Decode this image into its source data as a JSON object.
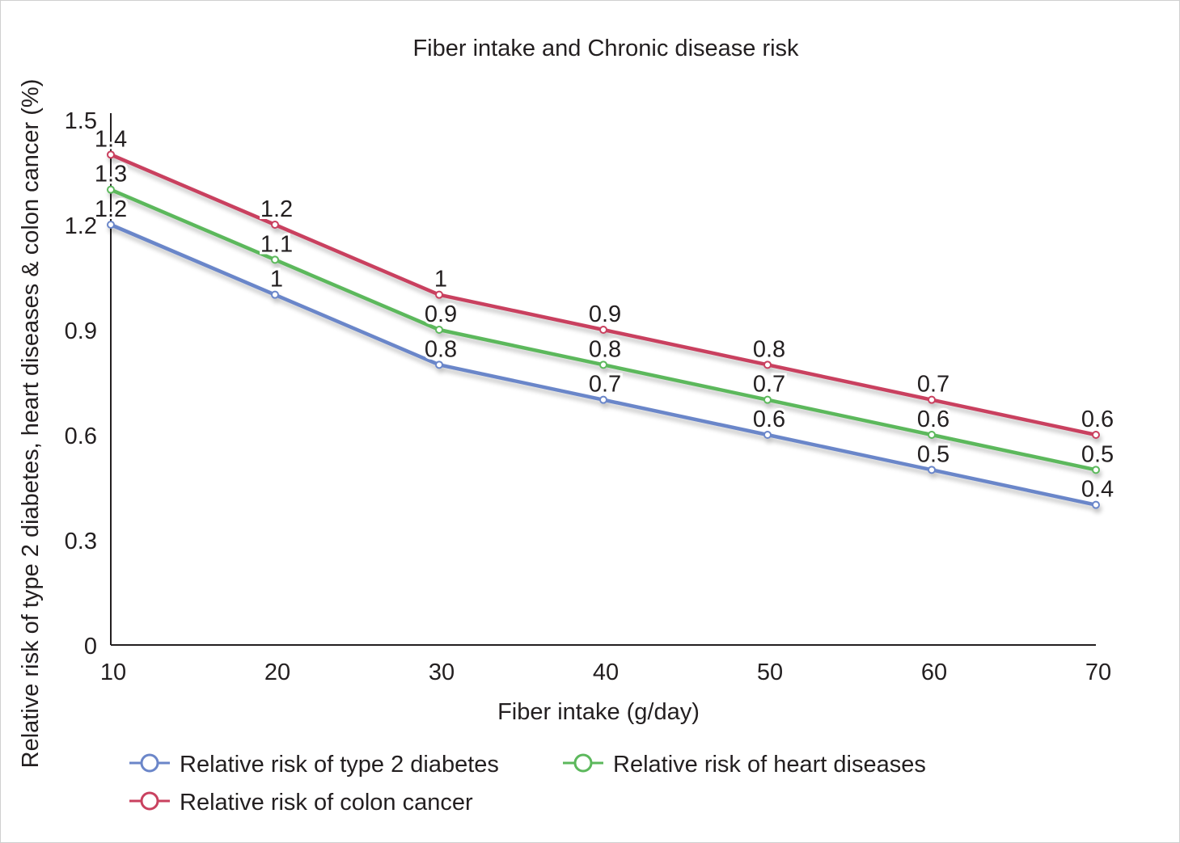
{
  "chart_data": {
    "type": "line",
    "title": "Fiber intake and Chronic disease risk",
    "xlabel": "Fiber intake (g/day)",
    "ylabel": "Relative risk of type 2 diabetes, heart diseases & colon cancer (%)",
    "x": [
      10,
      20,
      30,
      40,
      50,
      60,
      70
    ],
    "xlim": [
      10,
      70
    ],
    "ylim": [
      0,
      1.5
    ],
    "xticks": [
      "10",
      "20",
      "30",
      "40",
      "50",
      "60",
      "70"
    ],
    "yticks": [
      {
        "value": 0,
        "label": "0"
      },
      {
        "value": 0.3,
        "label": "0.3"
      },
      {
        "value": 0.6,
        "label": "0.6"
      },
      {
        "value": 0.9,
        "label": "0.9"
      },
      {
        "value": 1.2,
        "label": "1.2"
      },
      {
        "value": 1.5,
        "label": "1.5"
      }
    ],
    "grid": false,
    "legend_position": "bottom",
    "series": [
      {
        "name": "Relative risk of type 2 diabetes",
        "color": "#6b86c9",
        "values": [
          1.2,
          1.0,
          0.8,
          0.7,
          0.6,
          0.5,
          0.4
        ],
        "labels": [
          "1.2",
          "1",
          "0.8",
          "0.7",
          "0.6",
          "0.5",
          "0.4"
        ]
      },
      {
        "name": "Relative risk of heart diseases",
        "color": "#5cb85c",
        "values": [
          1.3,
          1.1,
          0.9,
          0.8,
          0.7,
          0.6,
          0.5
        ],
        "labels": [
          "1.3",
          "1.1",
          "0.9",
          "0.8",
          "0.7",
          "0.6",
          "0.5"
        ]
      },
      {
        "name": "Relative risk of colon cancer",
        "color": "#c9415f",
        "values": [
          1.4,
          1.2,
          1.0,
          0.9,
          0.8,
          0.7,
          0.6
        ],
        "labels": [
          "1.4",
          "1.2",
          "1",
          "0.9",
          "0.8",
          "0.7",
          "0.6"
        ]
      }
    ]
  }
}
